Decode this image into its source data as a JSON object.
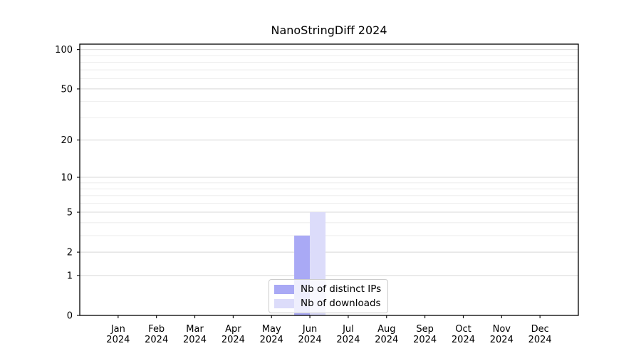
{
  "chart_data": {
    "type": "bar",
    "title": "NanoStringDiff 2024",
    "categories": [
      "Jan",
      "Feb",
      "Mar",
      "Apr",
      "May",
      "Jun",
      "Jul",
      "Aug",
      "Sep",
      "Oct",
      "Nov",
      "Dec"
    ],
    "x_tick_second_line": "2024",
    "series": [
      {
        "name": "Nb of distinct IPs",
        "color": "#a9a9f5",
        "values": [
          0,
          0,
          0,
          0,
          0,
          3,
          0,
          0,
          0,
          0,
          0,
          0
        ]
      },
      {
        "name": "Nb of downloads",
        "color": "#dcdcfa",
        "values": [
          0,
          0,
          0,
          0,
          0,
          5,
          0,
          0,
          0,
          0,
          0,
          0
        ]
      }
    ],
    "yscale": "log1p",
    "ylim": [
      0,
      110
    ],
    "y_major_ticks": [
      0,
      1,
      2,
      5,
      10,
      20,
      50,
      100
    ],
    "y_minor_gridlines": [
      3,
      4,
      6,
      7,
      8,
      9,
      30,
      40,
      60,
      70,
      80,
      90
    ],
    "grid": true,
    "legend_position": "lower center",
    "colors": {
      "axis": "#000000",
      "text": "#000000",
      "major_grid": "#d8d8d8",
      "minor_grid": "#eeeeee",
      "background": "#ffffff"
    }
  }
}
